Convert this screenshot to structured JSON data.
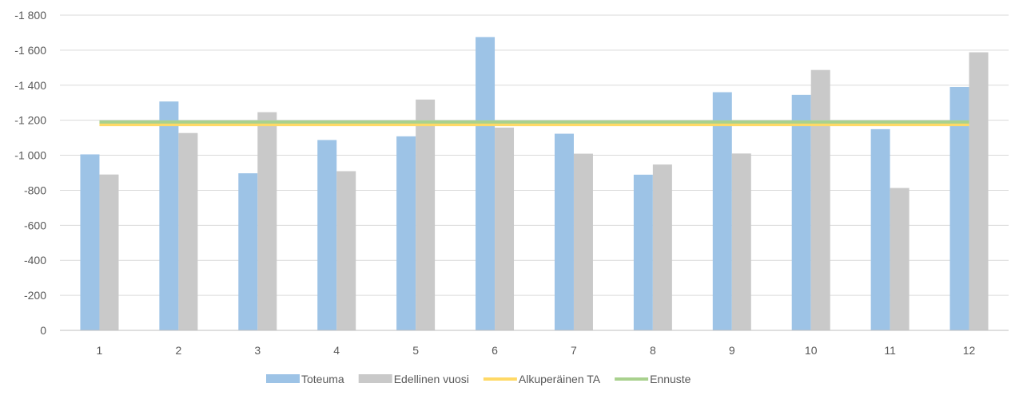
{
  "chart_data": {
    "type": "bar",
    "categories": [
      "1",
      "2",
      "3",
      "4",
      "5",
      "6",
      "7",
      "8",
      "9",
      "10",
      "11",
      "12"
    ],
    "series": [
      {
        "name": "Toteuma",
        "type": "bar",
        "color": "#9DC3E6",
        "values": [
          1005,
          1307,
          897,
          1087,
          1108,
          1675,
          1123,
          889,
          1360,
          1345,
          1149,
          1390
        ]
      },
      {
        "name": "Edellinen vuosi",
        "type": "bar",
        "color": "#C9C9C9",
        "values": [
          890,
          1127,
          1246,
          909,
          1318,
          1158,
          1009,
          947,
          1010,
          1487,
          813,
          1588
        ]
      },
      {
        "name": "Alkuperäinen TA",
        "type": "line",
        "color": "#FFD966",
        "values": [
          1175,
          1175,
          1175,
          1175,
          1175,
          1175,
          1175,
          1175,
          1175,
          1175,
          1175,
          1175
        ]
      },
      {
        "name": "Ennuste",
        "type": "line",
        "color": "#A9D18E",
        "values": [
          1190,
          1190,
          1190,
          1190,
          1190,
          1190,
          1190,
          1190,
          1190,
          1190,
          1190,
          1190
        ]
      }
    ],
    "y_axis": {
      "min": 0,
      "max": 1800,
      "step": 200,
      "tick_labels": [
        "0",
        "-200",
        "-400",
        "-600",
        "-800",
        "-1 000",
        "-1 200",
        "-1 400",
        "-1 600",
        "-1 800"
      ]
    },
    "title": "",
    "xlabel": "",
    "ylabel": "",
    "grid": true,
    "legend_position": "bottom",
    "colors": {
      "grid": "#D9D9D9",
      "axis": "#BFBFBF",
      "text": "#595959"
    }
  }
}
